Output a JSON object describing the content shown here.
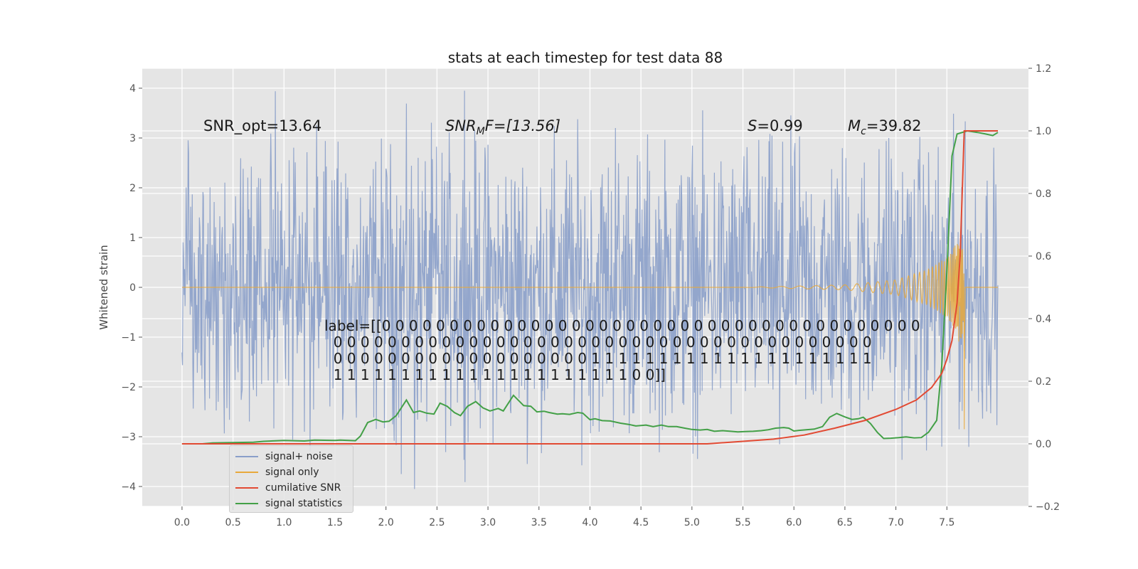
{
  "chart_data": {
    "type": "line",
    "title": "stats at each timestep for test data 88",
    "ylabel": "Whitened strain",
    "xlim": [
      -0.39,
      8.3
    ],
    "ylim": [
      -4.4,
      4.4
    ],
    "y2lim": [
      -0.2,
      1.2
    ],
    "xticks": [
      "0.0",
      "0.5",
      "1.0",
      "1.5",
      "2.0",
      "2.5",
      "3.0",
      "3.5",
      "4.0",
      "4.5",
      "5.0",
      "5.5",
      "6.0",
      "6.5",
      "7.0",
      "7.5"
    ],
    "yticks": [
      "4",
      "3",
      "2",
      "1",
      "0",
      "−1",
      "−2",
      "−3",
      "−4"
    ],
    "y2ticks": [
      "1.2",
      "1.0",
      "0.8",
      "0.6",
      "0.4",
      "0.2",
      "0.0",
      "−0.2"
    ],
    "grid": true,
    "legend_position": "lower-left",
    "colors": {
      "signal_noise": "#8a9fc9",
      "signal_only": "#e8a93c",
      "cumulative_snr": "#e24a33",
      "signal_statistics": "#43a047",
      "background": "#e5e5e5"
    },
    "annotations": {
      "snr_opt": "SNR_opt=13.64",
      "snr_mf": "SNR",
      "snr_mf_sub": "M",
      "snr_mf_rest": "F=[13.56]",
      "s_sym": "S",
      "s_val": "=0.99",
      "mc_sym": "M",
      "mc_sub": "c",
      "mc_val": "=39.82",
      "label_text": "label=[[0 0 0 0 0 0 0 0 0 0 0 0 0 0 0 0 0 0 0 0 0 0 0 0 0 0 0 0 0 0 0 0 0 0 0 0 0 0 0 0\n  0 0 0 0 0 0 0 0 0 0 0 0 0 0 0 0 0 0 0 0 0 0 0 0 0 0 0 0 0 0 0 0 0 0 0 0 0 0 0 0\n  0 0 0 0 0 0 0 0 0 0 0 0 0 0 0 0 0 0 0 1 1 1 1 1 1 1 1 1 1 1 1 1 1 1 1 1 1 1 1 1\n  1 1 1 1 1 1 1 1 1 1 1 1 1 1 1 1 1 1 1 1 1 1 0 0]]"
    },
    "series": [
      {
        "name": "signal+ noise",
        "axis": "left",
        "note": "whitened noise, roughly ±2.5 with peaks near 2.8 (3.95), 2.3 (−4.05), 2.15 (−3.75), 4.25 (3.2), 5.85 (−3.15)",
        "peaks": [
          [
            2.77,
            3.95
          ],
          [
            2.28,
            -4.05
          ],
          [
            2.15,
            -3.75
          ],
          [
            4.25,
            3.2
          ],
          [
            5.86,
            -3.15
          ],
          [
            1.2,
            -2.9
          ],
          [
            7.45,
            -3.2
          ],
          [
            6.93,
            3.0
          ]
        ],
        "x_range": [
          0.0,
          8.0
        ],
        "amplitude": 2.5
      },
      {
        "name": "signal only",
        "axis": "left",
        "points": [
          [
            0.0,
            0.0
          ],
          [
            5.5,
            0.0
          ],
          [
            6.5,
            0.05
          ],
          [
            7.0,
            0.15
          ],
          [
            7.3,
            0.35
          ],
          [
            7.5,
            0.6
          ],
          [
            7.6,
            0.9
          ],
          [
            7.65,
            1.5
          ],
          [
            7.67,
            -2.85
          ],
          [
            7.68,
            0.0
          ],
          [
            8.0,
            0.0
          ]
        ]
      },
      {
        "name": "cumilative SNR",
        "axis": "right",
        "points": [
          [
            0.0,
            0.0
          ],
          [
            5.15,
            0.0
          ],
          [
            5.5,
            0.008
          ],
          [
            5.8,
            0.015
          ],
          [
            6.1,
            0.028
          ],
          [
            6.4,
            0.05
          ],
          [
            6.7,
            0.075
          ],
          [
            7.0,
            0.11
          ],
          [
            7.2,
            0.14
          ],
          [
            7.35,
            0.18
          ],
          [
            7.45,
            0.225
          ],
          [
            7.5,
            0.27
          ],
          [
            7.55,
            0.33
          ],
          [
            7.6,
            0.45
          ],
          [
            7.63,
            0.6
          ],
          [
            7.65,
            0.8
          ],
          [
            7.67,
            1.0
          ],
          [
            8.0,
            1.0
          ]
        ]
      },
      {
        "name": "signal statistics",
        "axis": "right",
        "points": [
          [
            0.0,
            0.0
          ],
          [
            0.2,
            0.0
          ],
          [
            0.3,
            0.003
          ],
          [
            0.5,
            0.004
          ],
          [
            0.7,
            0.005
          ],
          [
            0.8,
            0.008
          ],
          [
            1.0,
            0.011
          ],
          [
            1.2,
            0.009
          ],
          [
            1.3,
            0.012
          ],
          [
            1.5,
            0.011
          ],
          [
            1.55,
            0.012
          ],
          [
            1.7,
            0.01
          ],
          [
            1.75,
            0.025
          ],
          [
            1.82,
            0.068
          ],
          [
            1.9,
            0.078
          ],
          [
            1.97,
            0.07
          ],
          [
            2.03,
            0.072
          ],
          [
            2.1,
            0.09
          ],
          [
            2.2,
            0.14
          ],
          [
            2.27,
            0.1
          ],
          [
            2.33,
            0.105
          ],
          [
            2.4,
            0.098
          ],
          [
            2.47,
            0.095
          ],
          [
            2.53,
            0.13
          ],
          [
            2.6,
            0.12
          ],
          [
            2.67,
            0.1
          ],
          [
            2.73,
            0.09
          ],
          [
            2.8,
            0.12
          ],
          [
            2.88,
            0.135
          ],
          [
            2.95,
            0.115
          ],
          [
            3.02,
            0.105
          ],
          [
            3.1,
            0.113
          ],
          [
            3.15,
            0.105
          ],
          [
            3.25,
            0.155
          ],
          [
            3.35,
            0.122
          ],
          [
            3.42,
            0.12
          ],
          [
            3.48,
            0.102
          ],
          [
            3.55,
            0.104
          ],
          [
            3.6,
            0.1
          ],
          [
            3.68,
            0.095
          ],
          [
            3.73,
            0.096
          ],
          [
            3.8,
            0.094
          ],
          [
            3.88,
            0.1
          ],
          [
            3.93,
            0.098
          ],
          [
            4.0,
            0.077
          ],
          [
            4.05,
            0.08
          ],
          [
            4.12,
            0.074
          ],
          [
            4.2,
            0.073
          ],
          [
            4.3,
            0.066
          ],
          [
            4.38,
            0.062
          ],
          [
            4.45,
            0.057
          ],
          [
            4.55,
            0.06
          ],
          [
            4.62,
            0.055
          ],
          [
            4.7,
            0.06
          ],
          [
            4.77,
            0.055
          ],
          [
            4.85,
            0.055
          ],
          [
            4.93,
            0.05
          ],
          [
            5.0,
            0.046
          ],
          [
            5.08,
            0.044
          ],
          [
            5.15,
            0.046
          ],
          [
            5.22,
            0.04
          ],
          [
            5.3,
            0.042
          ],
          [
            5.38,
            0.04
          ],
          [
            5.45,
            0.038
          ],
          [
            5.52,
            0.039
          ],
          [
            5.6,
            0.04
          ],
          [
            5.68,
            0.042
          ],
          [
            5.75,
            0.045
          ],
          [
            5.82,
            0.05
          ],
          [
            5.9,
            0.052
          ],
          [
            5.95,
            0.05
          ],
          [
            6.0,
            0.041
          ],
          [
            6.05,
            0.043
          ],
          [
            6.12,
            0.045
          ],
          [
            6.2,
            0.047
          ],
          [
            6.28,
            0.055
          ],
          [
            6.35,
            0.085
          ],
          [
            6.42,
            0.097
          ],
          [
            6.5,
            0.086
          ],
          [
            6.57,
            0.078
          ],
          [
            6.63,
            0.08
          ],
          [
            6.68,
            0.085
          ],
          [
            6.75,
            0.065
          ],
          [
            6.82,
            0.036
          ],
          [
            6.88,
            0.017
          ],
          [
            6.95,
            0.018
          ],
          [
            7.03,
            0.02
          ],
          [
            7.1,
            0.022
          ],
          [
            7.18,
            0.019
          ],
          [
            7.25,
            0.02
          ],
          [
            7.32,
            0.037
          ],
          [
            7.4,
            0.075
          ],
          [
            7.45,
            0.25
          ],
          [
            7.5,
            0.55
          ],
          [
            7.55,
            0.92
          ],
          [
            7.6,
            0.99
          ],
          [
            7.7,
            1.0
          ],
          [
            7.8,
            0.995
          ],
          [
            7.88,
            0.99
          ],
          [
            7.95,
            0.985
          ],
          [
            8.0,
            0.995
          ]
        ]
      }
    ]
  }
}
